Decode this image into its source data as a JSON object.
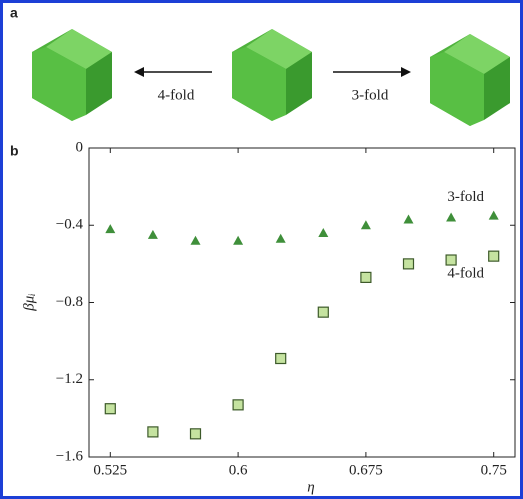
{
  "panel_a": {
    "label": "a",
    "left_label": "4-fold",
    "right_label": "3-fold"
  },
  "chart_data": {
    "type": "scatter",
    "panel_label": "b",
    "x_label": "η",
    "y_label": "βμᵢ",
    "xlim": [
      0.5125,
      0.7625
    ],
    "ylim": [
      -1.6,
      0
    ],
    "xticks": [
      0.525,
      0.6,
      0.675,
      0.75
    ],
    "yticks": [
      {
        "value": -1.6,
        "label": "−1.6"
      },
      {
        "value": -1.2,
        "label": "−1.2"
      },
      {
        "value": -0.8,
        "label": "−0.8"
      },
      {
        "value": -0.4,
        "label": "−0.4"
      },
      0
    ],
    "x": [
      0.525,
      0.55,
      0.575,
      0.6,
      0.625,
      0.65,
      0.675,
      0.7,
      0.725,
      0.75
    ],
    "series": [
      {
        "name": "3-fold",
        "marker": "triangle",
        "color": "#3f8f3a",
        "values": [
          -0.42,
          -0.45,
          -0.48,
          -0.48,
          -0.47,
          -0.44,
          -0.4,
          -0.37,
          -0.36,
          -0.35
        ]
      },
      {
        "name": "4-fold",
        "marker": "square",
        "color": "#c5e3a0",
        "values": [
          -1.35,
          -1.47,
          -1.48,
          -1.33,
          -1.09,
          -0.85,
          -0.67,
          -0.6,
          -0.58,
          -0.56
        ]
      }
    ]
  }
}
